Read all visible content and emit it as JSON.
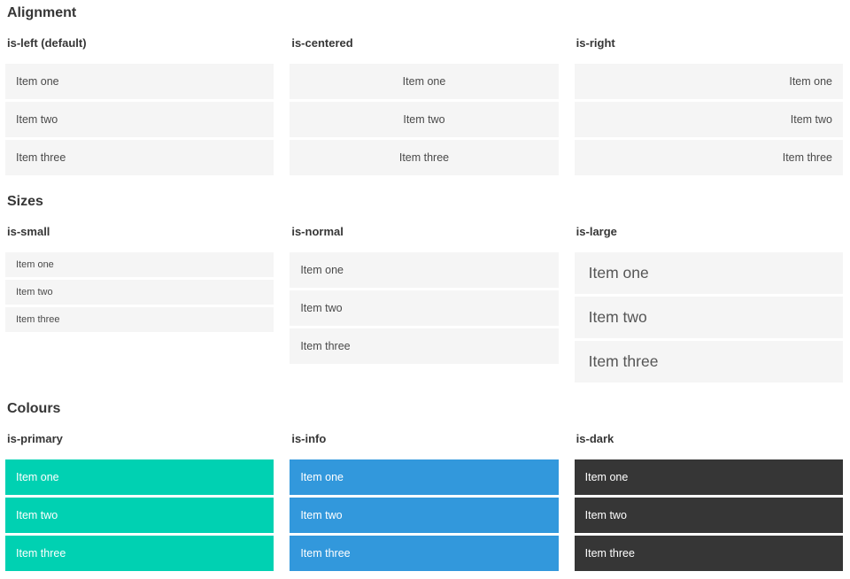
{
  "colors": {
    "primary": "#00d1b2",
    "info": "#3298dc",
    "dark": "#363636",
    "item_bg": "#f5f5f5",
    "item_text": "#4a4a4a",
    "item_text_inverse": "#ffffff",
    "heading_text": "#363636"
  },
  "sections": [
    {
      "title": "Alignment",
      "columns": [
        {
          "label": "is-left (default)",
          "items": [
            "Item one",
            "Item two",
            "Item three"
          ]
        },
        {
          "label": "is-centered",
          "items": [
            "Item one",
            "Item two",
            "Item three"
          ]
        },
        {
          "label": "is-right",
          "items": [
            "Item one",
            "Item two",
            "Item three"
          ]
        }
      ]
    },
    {
      "title": "Sizes",
      "columns": [
        {
          "label": "is-small",
          "items": [
            "Item one",
            "Item two",
            "Item three"
          ]
        },
        {
          "label": "is-normal",
          "items": [
            "Item one",
            "Item two",
            "Item three"
          ]
        },
        {
          "label": "is-large",
          "items": [
            "Item one",
            "Item two",
            "Item three"
          ]
        }
      ]
    },
    {
      "title": "Colours",
      "columns": [
        {
          "label": "is-primary",
          "items": [
            "Item one",
            "Item two",
            "Item three"
          ]
        },
        {
          "label": "is-info",
          "items": [
            "Item one",
            "Item two",
            "Item three"
          ]
        },
        {
          "label": "is-dark",
          "items": [
            "Item one",
            "Item two",
            "Item three"
          ]
        }
      ]
    }
  ]
}
